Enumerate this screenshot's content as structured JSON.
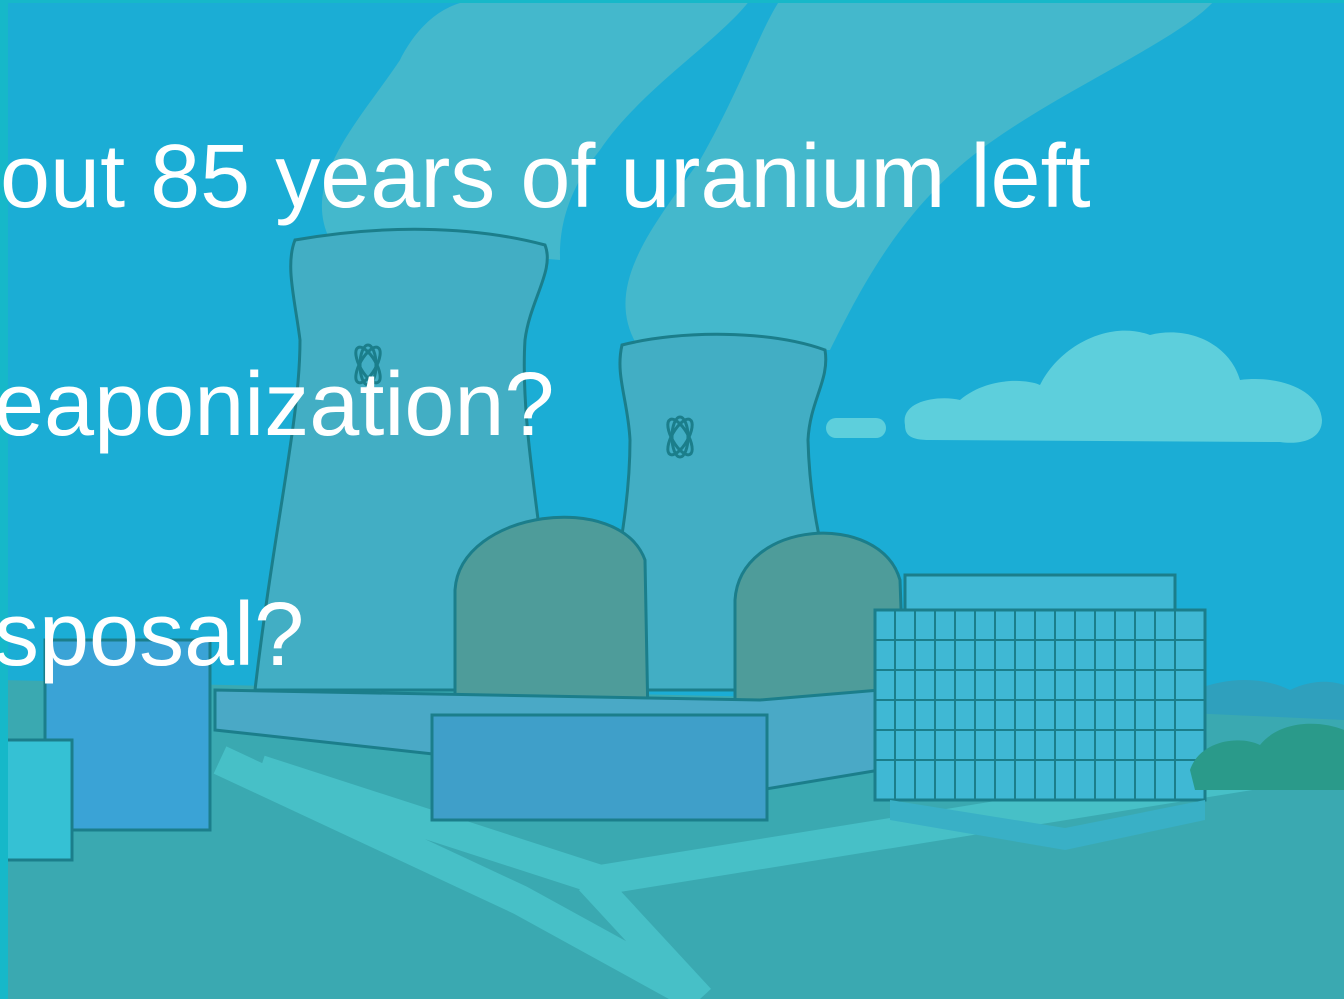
{
  "slide": {
    "lines": [
      "out 85 years of uranium left",
      "eaponization?",
      "sposal?"
    ]
  }
}
